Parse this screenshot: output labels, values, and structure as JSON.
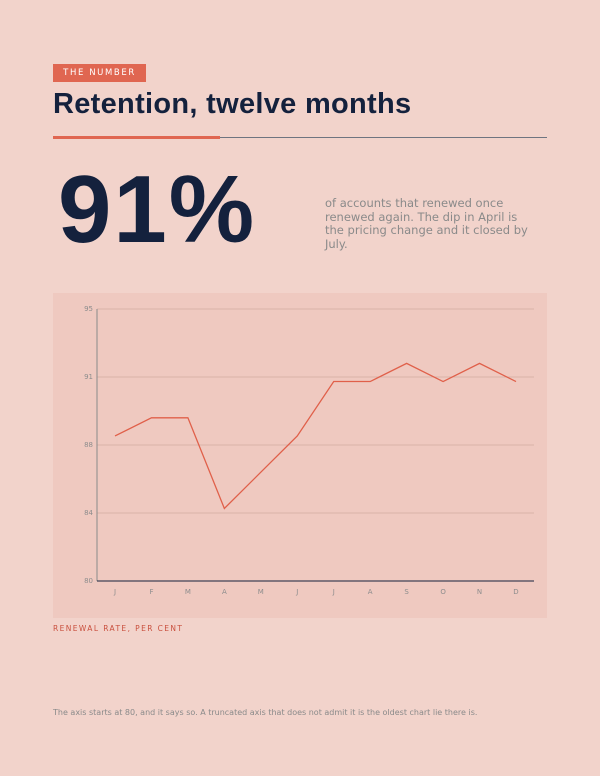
{
  "kicker": "THE NUMBER",
  "title": "Retention, twelve months",
  "big_number": "91%",
  "description": "of accounts that renewed once renewed again. The dip in April is the pricing change and it closed by July.",
  "footnote": "The axis starts at 80, and it says so. A truncated axis that does not admit it is the oldest chart lie there is.",
  "chart_data": {
    "type": "line",
    "y_label": "RENEWAL RATE, PER CENT",
    "categories": [
      "J",
      "F",
      "M",
      "A",
      "M",
      "J",
      "J",
      "A",
      "S",
      "O",
      "N",
      "D"
    ],
    "values": [
      88,
      89,
      89,
      84,
      86,
      88,
      91,
      91,
      92,
      91,
      92,
      91
    ],
    "color": "#e0604a",
    "ylim": [
      80,
      95
    ],
    "yticks": [
      80,
      {
        "value": 83.75,
        "label": "84"
      },
      {
        "value": 87.5,
        "label": "88"
      },
      {
        "value": 91.25,
        "label": "91"
      },
      95
    ],
    "grid": true
  }
}
